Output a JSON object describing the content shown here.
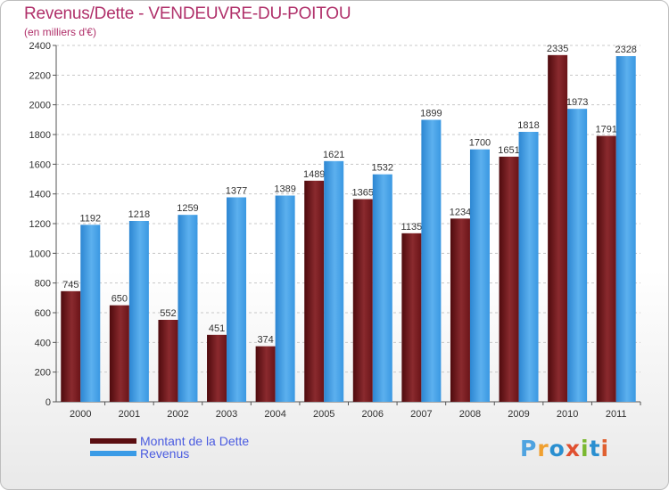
{
  "header": {
    "title": "Revenus/Dette - VENDEUVRE-DU-POITOU",
    "subtitle": "(en milliers d'€)"
  },
  "colors": {
    "dette": "#7a1f23",
    "revenus": "#3a9be6",
    "title": "#b0306a",
    "legend_text": "#4a5be0"
  },
  "legend": {
    "dette_label": "Montant de la Dette",
    "revenus_label": "Revenus"
  },
  "logo": {
    "text": "Proxiti",
    "letter_colors": [
      "#4fa3e0",
      "#f0a030",
      "#2a8fd0",
      "#e05030",
      "#7ab830",
      "#2a8fd0",
      "#e06030"
    ]
  },
  "chart_data": {
    "type": "bar",
    "categories": [
      "2000",
      "2001",
      "2002",
      "2003",
      "2004",
      "2005",
      "2006",
      "2007",
      "2008",
      "2009",
      "2010",
      "2011"
    ],
    "series": [
      {
        "name": "Montant de la Dette",
        "values": [
          745,
          650,
          552,
          451,
          374,
          1489,
          1365,
          1135,
          1234,
          1651,
          2335,
          1791
        ]
      },
      {
        "name": "Revenus",
        "values": [
          1192,
          1218,
          1259,
          1377,
          1389,
          1621,
          1532,
          1899,
          1700,
          1818,
          1973,
          2328
        ]
      }
    ],
    "data_labels": [
      [
        "745",
        "650",
        "552",
        "451",
        "374",
        "1489",
        "1365",
        "1135",
        "1234",
        "1651",
        "2335",
        "1791"
      ],
      [
        "1192",
        "1218",
        "1259",
        "1377",
        "1389",
        "1621",
        "1532",
        "1899",
        "1700",
        "1818",
        "1973",
        "2328"
      ]
    ],
    "y_ticks": [
      0,
      200,
      400,
      600,
      800,
      1000,
      1200,
      1400,
      1600,
      1800,
      2000,
      2200,
      2400
    ],
    "ylim": [
      0,
      2400
    ],
    "grid": true
  }
}
